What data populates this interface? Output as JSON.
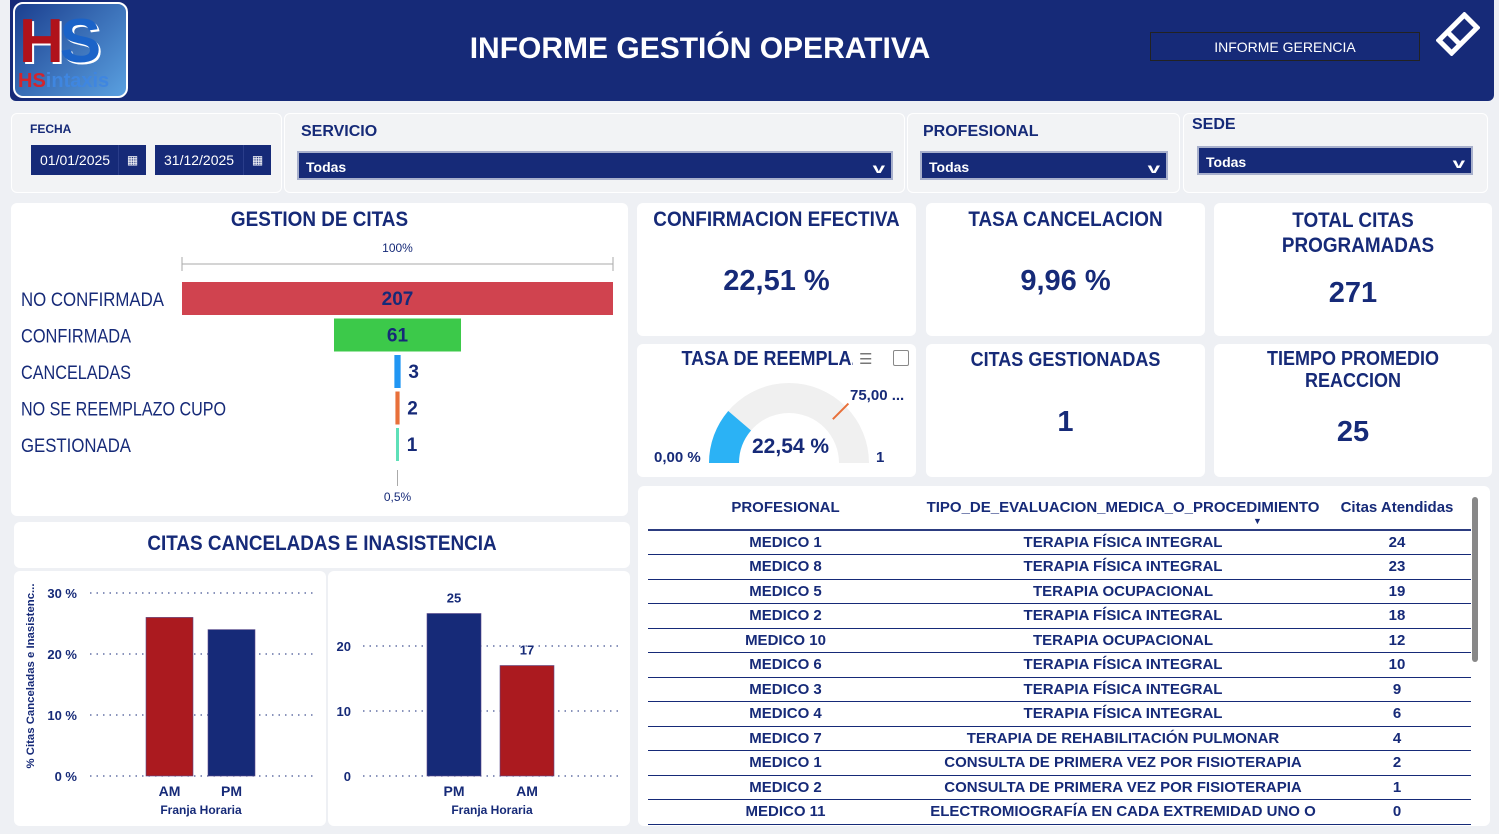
{
  "header": {
    "logo_text": "HSintaxis",
    "title": "INFORME GESTIÓN OPERATIVA",
    "report_button": "INFORME GERENCIA",
    "icon": "eraser-icon"
  },
  "filters": {
    "fecha": {
      "label": "FECHA",
      "start": "01/01/2025",
      "end": "31/12/2025"
    },
    "servicio": {
      "label": "SERVICIO",
      "value": "Todas"
    },
    "profesional": {
      "label": "PROFESIONAL",
      "value": "Todas"
    },
    "sede": {
      "label": "SEDE",
      "value": "Todas"
    }
  },
  "kpis": {
    "confirmacion": {
      "title": "CONFIRMACION EFECTIVA",
      "value": "22,51 %"
    },
    "cancelacion": {
      "title": "TASA CANCELACION",
      "value": "9,96 %"
    },
    "total": {
      "title": "TOTAL CITAS PROGRAMADAS",
      "value": "271"
    },
    "gestionadas": {
      "title": "CITAS GESTIONADAS",
      "value": "1"
    },
    "tiempo": {
      "title": "TIEMPO PROMEDIO REACCION",
      "value": "25"
    }
  },
  "gauge": {
    "title": "TASA DE REEMPLAZ",
    "min_label": "0,00 %",
    "max_label": "1",
    "target_label": "75,00 ...",
    "value_label": "22,54 %",
    "value": 0.2254,
    "target": 0.75,
    "max": 1,
    "colors": {
      "fill": "#2bb2f5",
      "track": "#f0f0f0",
      "target": "#e8703a"
    }
  },
  "chart_data": [
    {
      "type": "bar",
      "title": "GESTION DE CITAS",
      "orientation": "funnel",
      "top_label": "100%",
      "bottom_label": "0,5%",
      "categories": [
        "NO CONFIRMADA",
        "CONFIRMADA",
        "CANCELADAS",
        "NO SE REEMPLAZO CUPO",
        "GESTIONADA"
      ],
      "values": [
        207,
        61,
        3,
        2,
        1
      ],
      "colors": [
        "#d0434f",
        "#3cc94a",
        "#2196f3",
        "#e8703a",
        "#5ee0b8"
      ]
    },
    {
      "type": "bar",
      "title": "CITAS CANCELADAS E INASISTENCIA",
      "xlabel": "Franja Horaria",
      "ylabel": "% Citas Canceladas e Inasistenc...",
      "categories": [
        "AM",
        "PM"
      ],
      "values": [
        26,
        24
      ],
      "ylim": [
        0,
        30
      ],
      "yticks": [
        "0 %",
        "10 %",
        "20 %",
        "30 %"
      ],
      "colors": [
        "#ab1a1f",
        "#162a78"
      ],
      "grid": true
    },
    {
      "type": "bar",
      "xlabel": "Franja Horaria",
      "categories": [
        "PM",
        "AM"
      ],
      "values": [
        25,
        17
      ],
      "ylim": [
        0,
        27
      ],
      "yticks": [
        "0",
        "10",
        "20"
      ],
      "colors": [
        "#162a78",
        "#ab1a1f"
      ],
      "grid": true,
      "data_labels": [
        "25",
        "17"
      ]
    }
  ],
  "table": {
    "columns": [
      "PROFESIONAL",
      "TIPO_DE_EVALUACION_MEDICA_O_PROCEDIMIENTO",
      "Citas Atendidas"
    ],
    "rows": [
      [
        "MEDICO 1",
        "TERAPIA FÍSICA INTEGRAL",
        "24"
      ],
      [
        "MEDICO 8",
        "TERAPIA FÍSICA INTEGRAL",
        "23"
      ],
      [
        "MEDICO 5",
        "TERAPIA OCUPACIONAL",
        "19"
      ],
      [
        "MEDICO 2",
        "TERAPIA FÍSICA INTEGRAL",
        "18"
      ],
      [
        "MEDICO 10",
        "TERAPIA OCUPACIONAL",
        "12"
      ],
      [
        "MEDICO 6",
        "TERAPIA FÍSICA INTEGRAL",
        "10"
      ],
      [
        "MEDICO 3",
        "TERAPIA FÍSICA INTEGRAL",
        "9"
      ],
      [
        "MEDICO 4",
        "TERAPIA FÍSICA INTEGRAL",
        "6"
      ],
      [
        "MEDICO 7",
        "TERAPIA DE REHABILITACIÓN PULMONAR",
        "4"
      ],
      [
        "MEDICO 1",
        "CONSULTA DE PRIMERA VEZ POR FISIOTERAPIA",
        "2"
      ],
      [
        "MEDICO 2",
        "CONSULTA DE PRIMERA VEZ POR FISIOTERAPIA",
        "1"
      ],
      [
        "MEDICO 11",
        "ELECTROMIOGRAFÍA EN CADA EXTREMIDAD UNO O",
        "0"
      ]
    ]
  }
}
